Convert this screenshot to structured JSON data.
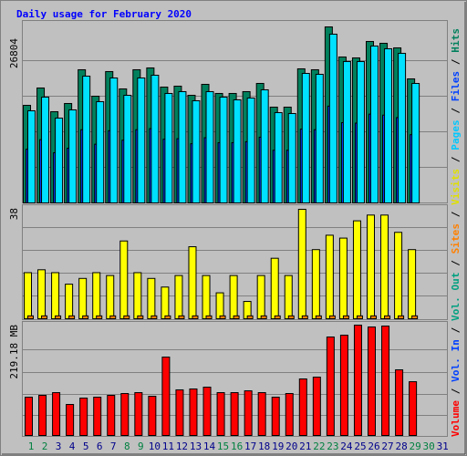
{
  "chart_data": [
    {
      "type": "bar",
      "title": "Daily usage for February 2020",
      "ylim": [
        0,
        26804
      ],
      "yticks": [
        26804
      ],
      "series": [
        {
          "color": "#00805c",
          "values": [
            14862,
            17501,
            13890,
            15140,
            20280,
            16251,
            20002,
            17363,
            20280,
            20557,
            17640,
            17779,
            16390,
            18057,
            16668,
            16668,
            16946,
            18196,
            14585,
            14585,
            20418,
            20280,
            26804,
            22224,
            22085,
            24585,
            24308,
            23613,
            18890,
            null,
            null
          ]
        },
        {
          "color": "#0040ff",
          "values": [
            8170,
            9630,
            7640,
            8330,
            11150,
            8940,
            11000,
            9550,
            11150,
            11310,
            9700,
            9780,
            9010,
            9930,
            9170,
            9170,
            9320,
            10010,
            8020,
            8020,
            11230,
            11150,
            14740,
            12220,
            12150,
            13520,
            13370,
            12990,
            10390,
            null,
            null
          ]
        },
        {
          "color": "#00e0ff",
          "values": [
            14029,
            16112,
            12918,
            14168,
            19307,
            15418,
            19029,
            16390,
            19029,
            19446,
            16668,
            16946,
            15557,
            16946,
            16112,
            15696,
            15974,
            17224,
            13751,
            13612,
            19724,
            19585,
            25697,
            21530,
            21530,
            23891,
            23474,
            22780,
            18196,
            null,
            null
          ]
        }
      ]
    },
    {
      "type": "bar",
      "ylim": [
        0,
        38
      ],
      "yticks": [
        38
      ],
      "series": [
        {
          "color": "#ffff00",
          "values": [
            16,
            17,
            16,
            12,
            14,
            16,
            15,
            27,
            16,
            14,
            11,
            15,
            25,
            15,
            9,
            15,
            6,
            15,
            21,
            15,
            38,
            24,
            29,
            28,
            34,
            36,
            36,
            30,
            24,
            null,
            null
          ]
        },
        {
          "color": "#ff8000",
          "values": [
            1,
            1,
            1,
            1,
            1,
            1,
            1,
            1,
            1,
            1,
            1,
            1,
            1,
            1,
            1,
            1,
            1,
            1,
            1,
            1,
            1,
            1,
            1,
            1,
            1,
            1,
            1,
            1,
            1,
            null,
            null
          ]
        }
      ]
    },
    {
      "type": "bar",
      "ylim": [
        0,
        219.18
      ],
      "yticks": [
        {
          "value": 219.18,
          "label": "219.18 MB"
        }
      ],
      "categories": [
        "1",
        "2",
        "3",
        "4",
        "5",
        "6",
        "7",
        "8",
        "9",
        "10",
        "11",
        "12",
        "13",
        "14",
        "15",
        "16",
        "17",
        "18",
        "19",
        "20",
        "21",
        "22",
        "23",
        "24",
        "25",
        "26",
        "27",
        "28",
        "29",
        "30",
        "31"
      ],
      "highlight_categories": [
        "1",
        "2",
        "8",
        "9",
        "15",
        "16",
        "22",
        "23",
        "29",
        "30"
      ],
      "category_color": "#00008b",
      "highlight_color": "#008040",
      "series": [
        {
          "color": "#ff0000",
          "values": [
            76.1,
            79.7,
            85.1,
            61.6,
            74.3,
            76.1,
            79.7,
            83.3,
            85.1,
            77.9,
            155.7,
            90.6,
            92.4,
            96.0,
            85.1,
            85.1,
            88.7,
            85.1,
            76.1,
            83.3,
            112.3,
            115.9,
            195.6,
            199.2,
            219.18,
            215.5,
            217.3,
            130.4,
            106.8,
            null,
            null
          ]
        }
      ]
    }
  ],
  "legend": [
    {
      "name": "Volume",
      "color": "#ff0000"
    },
    {
      "name": "Vol. In",
      "color": "#0040ff"
    },
    {
      "name": "Vol. Out",
      "color": "#00a080"
    },
    {
      "name": "Sites",
      "color": "#ff8000"
    },
    {
      "name": "Visits",
      "color": "#e0e000"
    },
    {
      "name": "Pages",
      "color": "#00c8ff"
    },
    {
      "name": "Files",
      "color": "#0040ff"
    },
    {
      "name": "Hits",
      "color": "#00805c"
    }
  ]
}
